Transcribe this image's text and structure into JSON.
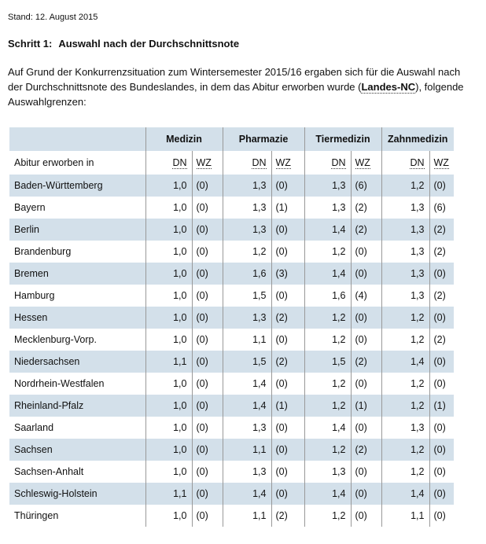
{
  "stand": "Stand: 12. August 2015",
  "heading": {
    "step": "Schritt 1:",
    "title": "Auswahl nach der Durchschnittsnote"
  },
  "intro": {
    "before": "Auf Grund der Konkurrenzsituation zum Wintersemester 2015/16 ergaben sich für die Auswahl nach der Durchschnittsnote des Bundeslandes, in dem das Abitur erworben wurde (",
    "abbr": "Landes-NC",
    "after": "), folgende Auswahlgrenzen:"
  },
  "table": {
    "subjects": [
      "Medizin",
      "Pharmazie",
      "Tiermedizin",
      "Zahnmedizin"
    ],
    "row_label_header": "Abitur erworben in",
    "dn": "DN",
    "wz": "WZ",
    "rows": [
      {
        "state": "Baden-Württemberg",
        "v": [
          [
            "1,0",
            "(0)"
          ],
          [
            "1,3",
            "(0)"
          ],
          [
            "1,3",
            "(6)"
          ],
          [
            "1,2",
            "(0)"
          ]
        ]
      },
      {
        "state": "Bayern",
        "v": [
          [
            "1,0",
            "(0)"
          ],
          [
            "1,3",
            "(1)"
          ],
          [
            "1,3",
            "(2)"
          ],
          [
            "1,3",
            "(6)"
          ]
        ]
      },
      {
        "state": "Berlin",
        "v": [
          [
            "1,0",
            "(0)"
          ],
          [
            "1,3",
            "(0)"
          ],
          [
            "1,4",
            "(2)"
          ],
          [
            "1,3",
            "(2)"
          ]
        ]
      },
      {
        "state": "Brandenburg",
        "v": [
          [
            "1,0",
            "(0)"
          ],
          [
            "1,2",
            "(0)"
          ],
          [
            "1,2",
            "(0)"
          ],
          [
            "1,3",
            "(2)"
          ]
        ]
      },
      {
        "state": "Bremen",
        "v": [
          [
            "1,0",
            "(0)"
          ],
          [
            "1,6",
            "(3)"
          ],
          [
            "1,4",
            "(0)"
          ],
          [
            "1,3",
            "(0)"
          ]
        ]
      },
      {
        "state": "Hamburg",
        "v": [
          [
            "1,0",
            "(0)"
          ],
          [
            "1,5",
            "(0)"
          ],
          [
            "1,6",
            "(4)"
          ],
          [
            "1,3",
            "(2)"
          ]
        ]
      },
      {
        "state": "Hessen",
        "v": [
          [
            "1,0",
            "(0)"
          ],
          [
            "1,3",
            "(2)"
          ],
          [
            "1,2",
            "(0)"
          ],
          [
            "1,2",
            "(0)"
          ]
        ]
      },
      {
        "state": "Mecklenburg-Vorp.",
        "v": [
          [
            "1,0",
            "(0)"
          ],
          [
            "1,1",
            "(0)"
          ],
          [
            "1,2",
            "(0)"
          ],
          [
            "1,2",
            "(2)"
          ]
        ]
      },
      {
        "state": "Niedersachsen",
        "v": [
          [
            "1,1",
            "(0)"
          ],
          [
            "1,5",
            "(2)"
          ],
          [
            "1,5",
            "(2)"
          ],
          [
            "1,4",
            "(0)"
          ]
        ]
      },
      {
        "state": "Nordrhein-Westfalen",
        "v": [
          [
            "1,0",
            "(0)"
          ],
          [
            "1,4",
            "(0)"
          ],
          [
            "1,2",
            "(0)"
          ],
          [
            "1,2",
            "(0)"
          ]
        ]
      },
      {
        "state": "Rheinland-Pfalz",
        "v": [
          [
            "1,0",
            "(0)"
          ],
          [
            "1,4",
            "(1)"
          ],
          [
            "1,2",
            "(1)"
          ],
          [
            "1,2",
            "(1)"
          ]
        ]
      },
      {
        "state": "Saarland",
        "v": [
          [
            "1,0",
            "(0)"
          ],
          [
            "1,3",
            "(0)"
          ],
          [
            "1,4",
            "(0)"
          ],
          [
            "1,3",
            "(0)"
          ]
        ]
      },
      {
        "state": "Sachsen",
        "v": [
          [
            "1,0",
            "(0)"
          ],
          [
            "1,1",
            "(0)"
          ],
          [
            "1,2",
            "(2)"
          ],
          [
            "1,2",
            "(0)"
          ]
        ]
      },
      {
        "state": "Sachsen-Anhalt",
        "v": [
          [
            "1,0",
            "(0)"
          ],
          [
            "1,3",
            "(0)"
          ],
          [
            "1,3",
            "(0)"
          ],
          [
            "1,2",
            "(0)"
          ]
        ]
      },
      {
        "state": "Schleswig-Holstein",
        "v": [
          [
            "1,1",
            "(0)"
          ],
          [
            "1,4",
            "(0)"
          ],
          [
            "1,4",
            "(0)"
          ],
          [
            "1,4",
            "(0)"
          ]
        ]
      },
      {
        "state": "Thüringen",
        "v": [
          [
            "1,0",
            "(0)"
          ],
          [
            "1,1",
            "(2)"
          ],
          [
            "1,2",
            "(0)"
          ],
          [
            "1,1",
            "(0)"
          ]
        ]
      }
    ]
  }
}
